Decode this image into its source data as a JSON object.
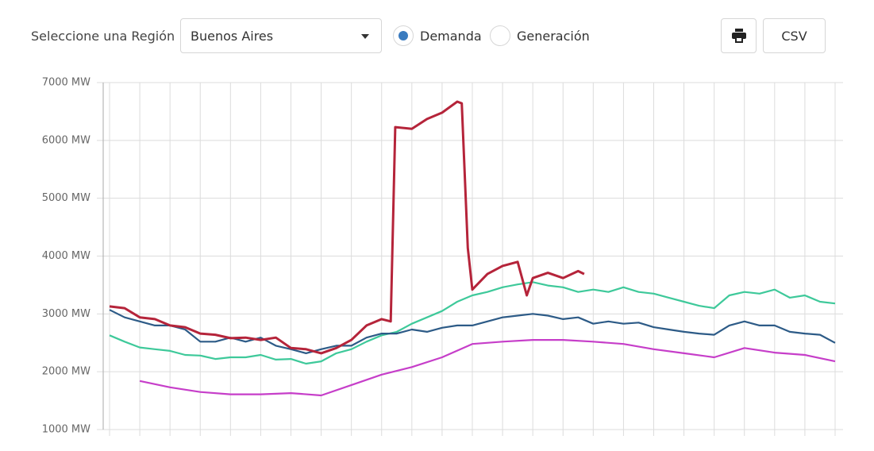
{
  "controls": {
    "region_label": "Seleccione una Región",
    "region_value": "Buenos Aires",
    "radio_options": [
      "Demanda",
      "Generación"
    ],
    "selected_radio": 0,
    "csv_button": "CSV"
  },
  "chart_data": {
    "type": "line",
    "xlim": [
      0,
      24
    ],
    "xticks": [
      0,
      1,
      2,
      3,
      4,
      5,
      6,
      7,
      8,
      9,
      10,
      11,
      12,
      13,
      14,
      15,
      16,
      17,
      18,
      19,
      20,
      21,
      22,
      23,
      24
    ],
    "ylim": [
      1000,
      7000
    ],
    "yticks": [
      {
        "value": 1000,
        "label": "1000 MW"
      },
      {
        "value": 2000,
        "label": "2000 MW"
      },
      {
        "value": 3000,
        "label": "3000 MW"
      },
      {
        "value": 4000,
        "label": "4000 MW"
      },
      {
        "value": 5000,
        "label": "5000 MW"
      },
      {
        "value": 6000,
        "label": "6000 MW"
      },
      {
        "value": 7000,
        "label": "7000 MW"
      }
    ],
    "grid": true,
    "series": [
      {
        "color": "#3ec99a",
        "x": [
          0,
          0.5,
          1,
          1.5,
          2,
          2.5,
          3,
          3.5,
          4,
          4.5,
          5,
          5.5,
          6,
          6.5,
          7,
          7.5,
          8,
          8.5,
          9,
          9.5,
          10,
          10.5,
          11,
          11.5,
          12,
          12.5,
          13,
          13.5,
          14,
          14.5,
          15,
          15.5,
          16,
          16.5,
          17,
          17.5,
          18,
          18.5,
          19,
          19.5,
          20,
          20.5,
          21,
          21.5,
          22,
          22.5,
          23,
          23.5,
          24
        ],
        "values": [
          2630,
          2520,
          2420,
          2390,
          2360,
          2290,
          2280,
          2220,
          2250,
          2250,
          2290,
          2210,
          2220,
          2140,
          2180,
          2320,
          2390,
          2520,
          2630,
          2690,
          2830,
          2940,
          3050,
          3210,
          3320,
          3380,
          3460,
          3510,
          3550,
          3490,
          3460,
          3380,
          3420,
          3380,
          3460,
          3380,
          3350,
          3280,
          3210,
          3140,
          3100,
          3320,
          3380,
          3350,
          3420,
          3280,
          3320,
          3210,
          3180
        ]
      },
      {
        "color": "#2d5b87",
        "x": [
          0,
          0.5,
          1,
          1.5,
          2,
          2.5,
          3,
          3.5,
          4,
          4.5,
          5,
          5.5,
          6,
          6.5,
          7,
          7.5,
          8,
          8.5,
          9,
          9.5,
          10,
          10.5,
          11,
          11.5,
          12,
          12.5,
          13,
          13.5,
          14,
          14.5,
          15,
          15.5,
          16,
          16.5,
          17,
          17.5,
          18,
          18.5,
          19,
          19.5,
          20,
          20.5,
          21,
          21.5,
          22,
          22.5,
          23,
          23.5,
          24
        ],
        "values": [
          3070,
          2940,
          2870,
          2800,
          2800,
          2730,
          2520,
          2520,
          2590,
          2520,
          2590,
          2450,
          2390,
          2320,
          2390,
          2450,
          2450,
          2590,
          2660,
          2660,
          2730,
          2690,
          2760,
          2800,
          2800,
          2870,
          2940,
          2970,
          3000,
          2970,
          2910,
          2940,
          2830,
          2870,
          2830,
          2850,
          2770,
          2730,
          2690,
          2660,
          2640,
          2800,
          2870,
          2800,
          2800,
          2690,
          2660,
          2640,
          2500
        ]
      },
      {
        "color": "#c63ec9",
        "x": [
          1,
          2,
          3,
          4,
          5,
          6,
          7,
          8,
          9,
          10,
          11,
          12,
          13,
          14,
          15,
          16,
          17,
          18,
          19,
          20,
          21,
          22,
          23,
          24
        ],
        "values": [
          1840,
          1730,
          1650,
          1610,
          1610,
          1630,
          1590,
          1770,
          1950,
          2080,
          2250,
          2480,
          2520,
          2550,
          2550,
          2520,
          2480,
          2390,
          2320,
          2250,
          2410,
          2330,
          2290,
          2180
        ]
      },
      {
        "color": "#b5243a",
        "x": [
          0,
          0.5,
          1,
          1.5,
          2,
          2.5,
          3,
          3.5,
          4,
          4.5,
          5,
          5.5,
          6,
          6.5,
          7,
          7.5,
          8,
          8.5,
          9,
          9.3,
          9.45,
          10,
          10.5,
          11,
          11.5,
          11.65,
          11.85,
          12,
          12.5,
          13,
          13.5,
          13.8,
          14,
          14.5,
          15,
          15.5,
          15.7
        ],
        "values": [
          3130,
          3100,
          2940,
          2910,
          2800,
          2770,
          2660,
          2640,
          2580,
          2590,
          2550,
          2590,
          2410,
          2390,
          2320,
          2410,
          2550,
          2800,
          2910,
          2870,
          6230,
          6200,
          6370,
          6480,
          6670,
          6640,
          4140,
          3420,
          3690,
          3830,
          3900,
          3320,
          3620,
          3710,
          3620,
          3740,
          3690
        ]
      }
    ]
  }
}
